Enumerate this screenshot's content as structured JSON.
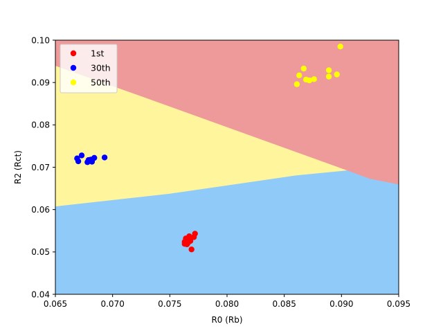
{
  "chart_data": {
    "type": "scatter",
    "xlabel": "R0 (Rb)",
    "ylabel": "R2 (Rct)",
    "xlim": [
      0.065,
      0.095
    ],
    "ylim": [
      0.04,
      0.1
    ],
    "xticks": [
      "0.065",
      "0.070",
      "0.075",
      "0.080",
      "0.085",
      "0.090",
      "0.095"
    ],
    "yticks": [
      "0.04",
      "0.05",
      "0.06",
      "0.07",
      "0.08",
      "0.09",
      "0.10"
    ],
    "legend_position": "top-left",
    "grid": false,
    "decision_regions": [
      {
        "class": "1st",
        "color": "#90caf9",
        "polygon": [
          [
            0.065,
            0.04
          ],
          [
            0.095,
            0.04
          ],
          [
            0.095,
            0.066
          ],
          [
            0.0925,
            0.0673
          ],
          [
            0.0905,
            0.0693
          ],
          [
            0.086,
            0.0681
          ],
          [
            0.075,
            0.0638
          ],
          [
            0.065,
            0.0608
          ]
        ]
      },
      {
        "class": "30th",
        "color": "#fff59d",
        "polygon": [
          [
            0.065,
            0.0608
          ],
          [
            0.075,
            0.0638
          ],
          [
            0.086,
            0.0681
          ],
          [
            0.0905,
            0.0693
          ],
          [
            0.0725,
            0.0868
          ],
          [
            0.065,
            0.094
          ]
        ]
      },
      {
        "class": "50th",
        "color": "#ef9a9a",
        "polygon": [
          [
            0.065,
            0.094
          ],
          [
            0.0725,
            0.0868
          ],
          [
            0.0905,
            0.0693
          ],
          [
            0.0925,
            0.0673
          ],
          [
            0.095,
            0.066
          ],
          [
            0.095,
            0.1
          ],
          [
            0.065,
            0.1
          ]
        ]
      }
    ],
    "series": [
      {
        "name": "1st",
        "color": "#ff0000",
        "points": [
          [
            0.0763,
            0.0519
          ],
          [
            0.0763,
            0.0524
          ],
          [
            0.0764,
            0.0532
          ],
          [
            0.0765,
            0.0518
          ],
          [
            0.0766,
            0.0527
          ],
          [
            0.0767,
            0.0537
          ],
          [
            0.0768,
            0.0531
          ],
          [
            0.0769,
            0.0506
          ],
          [
            0.0771,
            0.0535
          ],
          [
            0.0772,
            0.0543
          ],
          [
            0.0766,
            0.0522
          ],
          [
            0.0768,
            0.0526
          ]
        ]
      },
      {
        "name": "30th",
        "color": "#0000ff",
        "points": [
          [
            0.0669,
            0.0721
          ],
          [
            0.067,
            0.0714
          ],
          [
            0.0673,
            0.0728
          ],
          [
            0.0678,
            0.0712
          ],
          [
            0.0679,
            0.0717
          ],
          [
            0.0681,
            0.0718
          ],
          [
            0.0682,
            0.0713
          ],
          [
            0.0684,
            0.0722
          ],
          [
            0.0693,
            0.0723
          ]
        ]
      },
      {
        "name": "50th",
        "color": "#ffff00",
        "points": [
          [
            0.0861,
            0.0896
          ],
          [
            0.0863,
            0.0917
          ],
          [
            0.0867,
            0.0933
          ],
          [
            0.0869,
            0.0907
          ],
          [
            0.0872,
            0.0905
          ],
          [
            0.0876,
            0.0908
          ],
          [
            0.0889,
            0.0929
          ],
          [
            0.0889,
            0.0914
          ],
          [
            0.0896,
            0.0919
          ],
          [
            0.0899,
            0.0985
          ]
        ]
      }
    ]
  }
}
